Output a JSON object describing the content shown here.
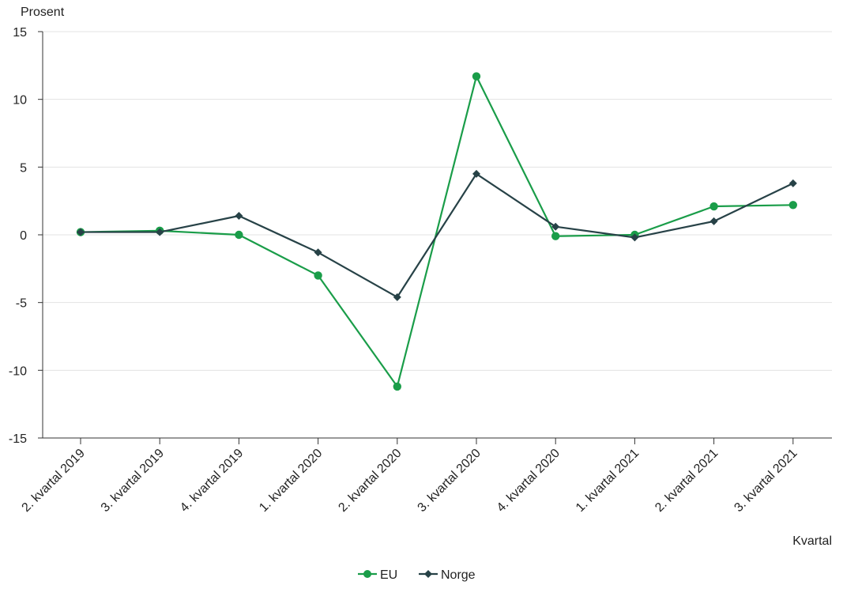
{
  "chart_data": {
    "type": "line",
    "ylabel": "Prosent",
    "xlabel": "Kvartal",
    "ylim": [
      -15,
      15
    ],
    "yticks": [
      15,
      10,
      5,
      0,
      -5,
      -10,
      -15
    ],
    "yticks_text": [
      "15",
      "10",
      "5",
      "0",
      "-5",
      "-10",
      "-15"
    ],
    "grid": true,
    "legend_position": "bottom-center",
    "categories": [
      "2. kvartal 2019",
      "3. kvartal 2019",
      "4. kvartal 2019",
      "1. kvartal 2020",
      "2. kvartal 2020",
      "3. kvartal 2020",
      "4. kvartal 2020",
      "1. kvartal 2021",
      "2. kvartal 2021",
      "3. kvartal 2021"
    ],
    "series": [
      {
        "name": "EU",
        "color": "#1a9d49",
        "marker": "circle",
        "values": [
          0.2,
          0.3,
          0.0,
          -3.0,
          -11.2,
          11.7,
          -0.1,
          0.0,
          2.1,
          2.2
        ]
      },
      {
        "name": "Norge",
        "color": "#274247",
        "marker": "diamond",
        "values": [
          0.2,
          0.2,
          1.4,
          -1.3,
          -4.6,
          4.5,
          0.6,
          -0.2,
          1.0,
          3.8
        ]
      }
    ]
  }
}
